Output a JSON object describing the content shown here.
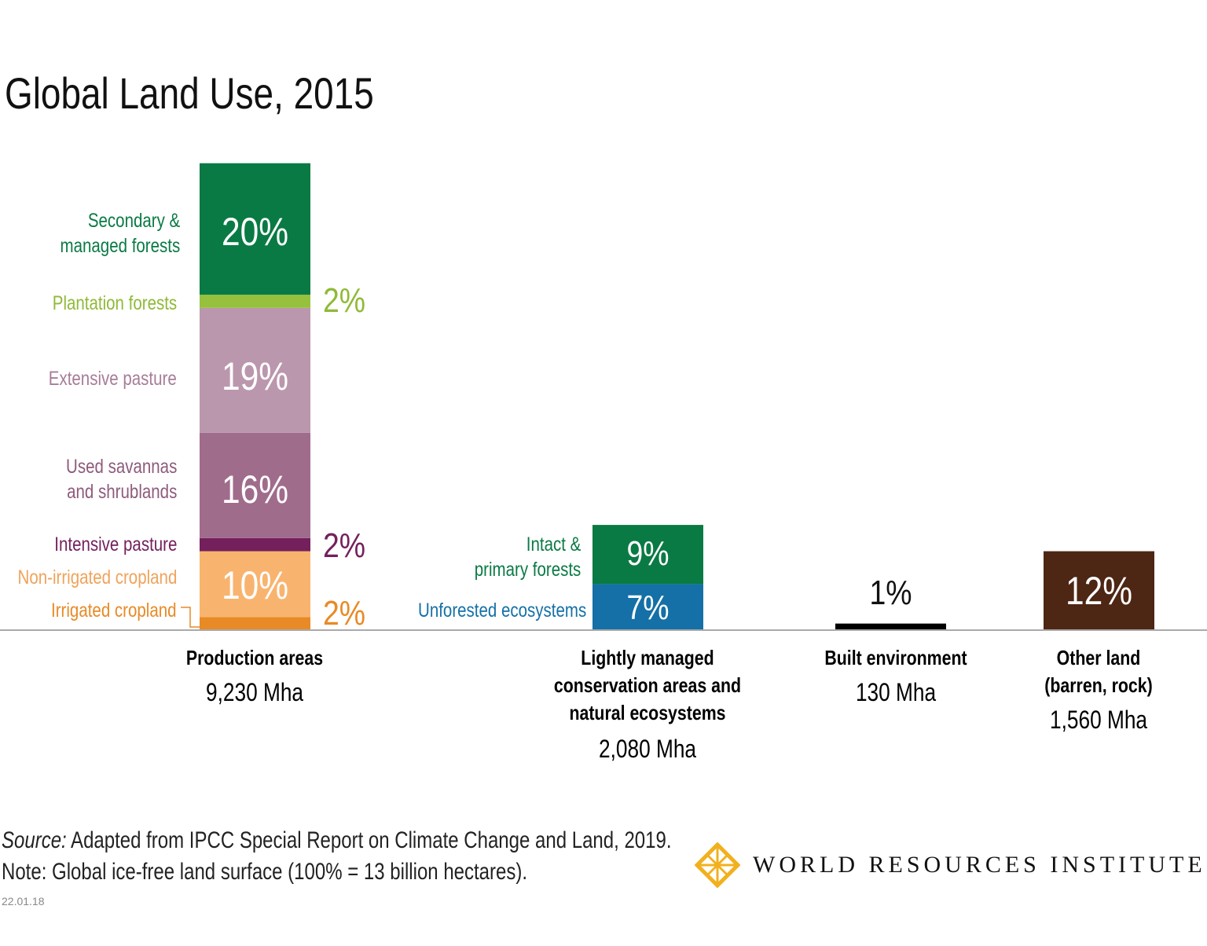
{
  "chart_data": {
    "type": "stacked-bar",
    "title": "Global Land Use, 2015",
    "unit": "% of global ice-free land surface",
    "categories": [
      {
        "name": "Production areas",
        "total": "9,230 Mha",
        "segments": [
          {
            "name": "Irrigated cropland",
            "value": 2,
            "color": "#e88a25"
          },
          {
            "name": "Non-irrigated cropland",
            "value": 10,
            "color": "#f8b46f"
          },
          {
            "name": "Intensive pasture",
            "value": 2,
            "color": "#74205d"
          },
          {
            "name": "Used savannas and shrublands",
            "value": 16,
            "color": "#a06c8c"
          },
          {
            "name": "Extensive pasture",
            "value": 19,
            "color": "#bb97ae"
          },
          {
            "name": "Plantation forests",
            "value": 2,
            "color": "#97c13d"
          },
          {
            "name": "Secondary & managed forests",
            "value": 20,
            "color": "#0a7a44"
          }
        ]
      },
      {
        "name": "Lightly managed conservation areas and natural ecosystems",
        "total": "2,080 Mha",
        "segments": [
          {
            "name": "Unforested ecosystems",
            "value": 7,
            "color": "#1470a6"
          },
          {
            "name": "Intact & primary forests",
            "value": 9,
            "color": "#0a7a44"
          }
        ]
      },
      {
        "name": "Built environment",
        "total": "130 Mha",
        "segments": [
          {
            "name": "Built environment",
            "value": 1,
            "color": "#000000"
          }
        ]
      },
      {
        "name": "Other land (barren, rock)",
        "total": "1,560 Mha",
        "segments": [
          {
            "name": "Other land",
            "value": 12,
            "color": "#4d2614"
          }
        ]
      }
    ]
  },
  "labels": {
    "secondary_1": "Secondary &",
    "secondary_2": "managed forests",
    "plantation": "Plantation forests",
    "extensive": "Extensive pasture",
    "savannas_1": "Used savannas",
    "savannas_2": "and shrublands",
    "intensive": "Intensive pasture",
    "nonirrigated": "Non-irrigated cropland",
    "irrigated": "Irrigated cropland",
    "intact_1": "Intact &",
    "intact_2": "primary forests",
    "unforested": "Unforested ecosystems"
  },
  "pct": {
    "secondary": "20%",
    "plantation": "2%",
    "extensive": "19%",
    "savannas": "16%",
    "intensive": "2%",
    "nonirrigated": "10%",
    "irrigated": "2%",
    "intact": "9%",
    "unforested": "7%",
    "built": "1%",
    "other": "12%"
  },
  "cats": {
    "production": "Production areas",
    "production_total": "9,230 Mha",
    "light_1": "Lightly managed",
    "light_2": "conservation areas and",
    "light_3": "natural ecosystems",
    "light_total": "2,080 Mha",
    "built": "Built environment",
    "built_total": "130 Mha",
    "other_1": "Other land",
    "other_2": "(barren, rock)",
    "other_total": "1,560 Mha"
  },
  "footer": {
    "source_label": "Source:",
    "source_text": " Adapted from IPCC Special Report on Climate Change and Land, 2019.",
    "note": "Note: Global ice-free land surface (100% = 13 billion hectares).",
    "date": "22.01.18",
    "logo_text": "WORLD RESOURCES INSTITUTE",
    "logo_color": "#f2b01e"
  }
}
